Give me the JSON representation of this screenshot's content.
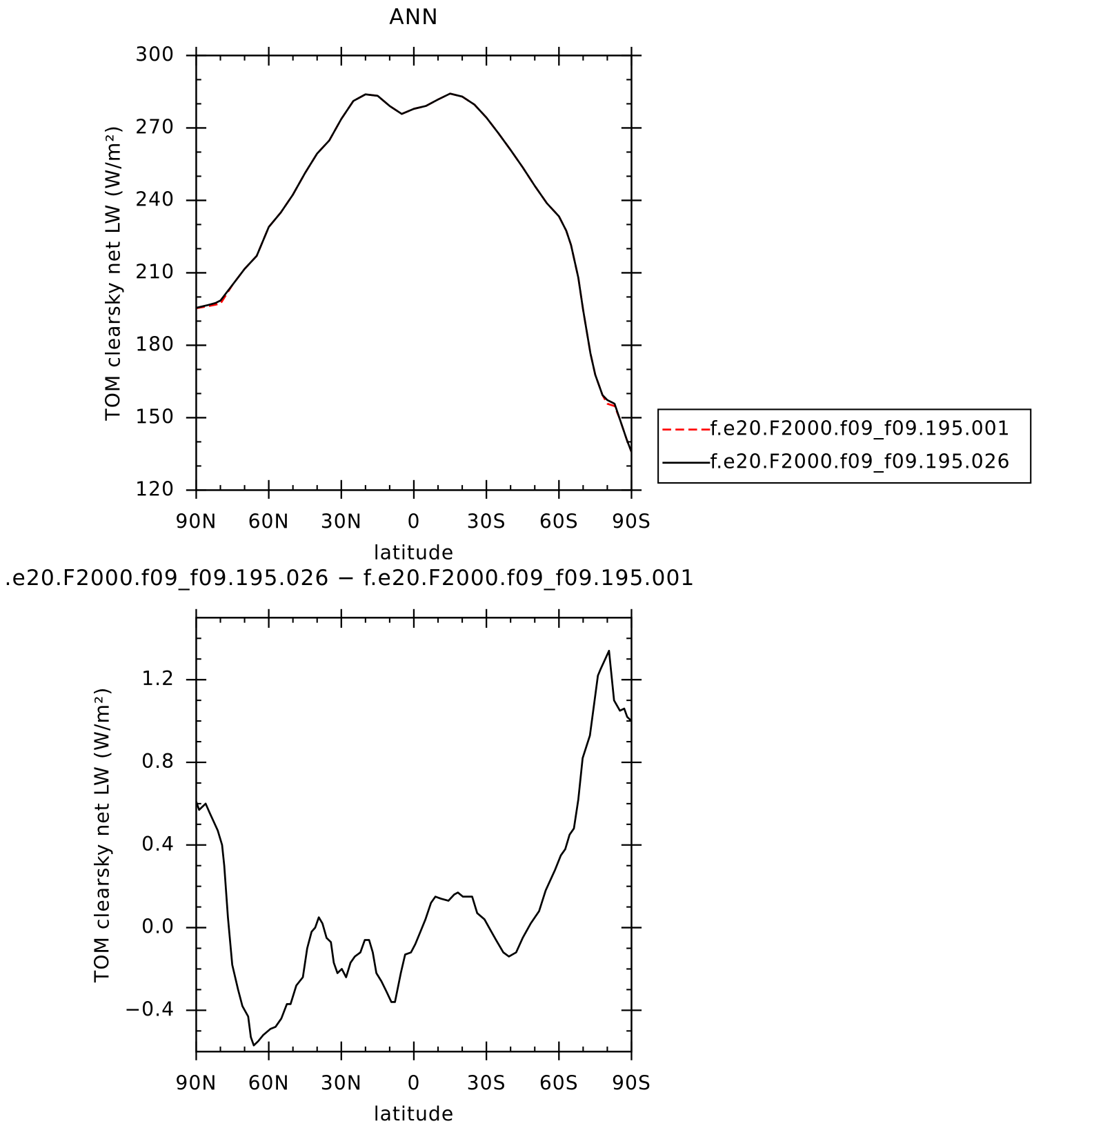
{
  "chart_data": [
    {
      "type": "line",
      "title": "ANN",
      "xlabel": "latitude",
      "ylabel": "TOM clearsky net LW (W/m²)",
      "x": [
        90,
        85,
        82,
        80,
        75,
        70,
        65,
        60,
        55,
        50,
        45,
        40,
        35,
        30,
        25,
        20,
        15,
        10,
        5,
        0,
        -5,
        -10,
        -15,
        -20,
        -25,
        -30,
        -35,
        -40,
        -45,
        -50,
        -55,
        -60,
        -63,
        -65,
        -68,
        -70,
        -73,
        -75,
        -78,
        -80,
        -83,
        -85,
        -88,
        -90
      ],
      "series": [
        {
          "name": "f.e20.F2000.f09_f09.195.001",
          "color": "#ff0000",
          "dash": true,
          "values": [
            195.3,
            196.2,
            196.8,
            197.2,
            205,
            211.6,
            217,
            229,
            235,
            242.4,
            251.3,
            259.4,
            264.8,
            273.7,
            281.2,
            283.9,
            283.3,
            279.1,
            275.8,
            277.9,
            279.1,
            281.8,
            284.2,
            283,
            279.7,
            274.3,
            267.8,
            260.9,
            253.7,
            246,
            238.8,
            233.4,
            227.5,
            221.5,
            208,
            194.6,
            176.7,
            167.8,
            159.4,
            155.8,
            154.8,
            149.9,
            141,
            135.8
          ]
        },
        {
          "name": "f.e20.F2000.f09_f09.195.026",
          "color": "#000000",
          "dash": false,
          "values": [
            195.5,
            196.7,
            197.5,
            198.5,
            205,
            211.6,
            217,
            229,
            235,
            242.4,
            251.3,
            259.4,
            264.8,
            273.7,
            281.2,
            283.9,
            283.3,
            279.1,
            275.8,
            277.9,
            279.1,
            281.8,
            284.2,
            283,
            279.7,
            274.3,
            267.8,
            260.9,
            253.7,
            246,
            238.8,
            233.4,
            227.5,
            221.5,
            208,
            194.6,
            176.7,
            167.8,
            159.4,
            157.3,
            155.8,
            149.9,
            141,
            135.8
          ]
        }
      ],
      "xlim": [
        90,
        -90
      ],
      "xticks": [
        {
          "value": 90,
          "label": "90N"
        },
        {
          "value": 60,
          "label": "60N"
        },
        {
          "value": 30,
          "label": "30N"
        },
        0,
        {
          "value": -30,
          "label": "30S"
        },
        {
          "value": -60,
          "label": "60S"
        },
        {
          "value": -90,
          "label": "90S"
        }
      ],
      "ylim": [
        120,
        300
      ],
      "yticks": [
        120,
        150,
        180,
        210,
        240,
        270,
        300
      ],
      "legend": "right"
    },
    {
      "type": "line",
      "title": ".e20.F2000.f09_f09.195.026 − f.e20.F2000.f09_f09.195.001",
      "xlabel": "latitude",
      "ylabel": "TOM clearsky net LW (W/m²)",
      "x": [
        90,
        88.8,
        86.1,
        84.6,
        81.1,
        79.3,
        78.4,
        76.9,
        75.1,
        72.7,
        70.9,
        68.5,
        67.4,
        66.2,
        64.4,
        62.3,
        59.3,
        57.2,
        54.8,
        52.5,
        51,
        48.6,
        45.9,
        44.1,
        42.3,
        40.8,
        39.3,
        37.8,
        36.1,
        34.3,
        33.1,
        31.6,
        29.8,
        28,
        26.2,
        24.4,
        22.1,
        20.3,
        18.5,
        17,
        15.5,
        13.4,
        11.3,
        9.3,
        7.8,
        5.4,
        3.6,
        1.2,
        -0.6,
        -2.7,
        -4.8,
        -7.1,
        -8.9,
        -11.3,
        -14.3,
        -16.7,
        -18.2,
        -20.3,
        -24.1,
        -26.2,
        -29.2,
        -31.6,
        -34,
        -37,
        -39.3,
        -42.3,
        -45,
        -48.3,
        -51.8,
        -54.5,
        -58.4,
        -60.8,
        -62.6,
        -64.4,
        -66.2,
        -68,
        -69.8,
        -72.8,
        -76.1,
        -77.2,
        -80.7,
        -82.8,
        -85.2,
        -87,
        -88.2,
        -90
      ],
      "series": [
        {
          "color": "#000000",
          "dash": false,
          "values": [
            0.61,
            0.57,
            0.6,
            0.56,
            0.47,
            0.4,
            0.3,
            0.05,
            -0.18,
            -0.3,
            -0.38,
            -0.43,
            -0.53,
            -0.57,
            -0.55,
            -0.52,
            -0.49,
            -0.48,
            -0.44,
            -0.37,
            -0.37,
            -0.28,
            -0.24,
            -0.1,
            -0.02,
            0,
            0.05,
            0.02,
            -0.05,
            -0.07,
            -0.17,
            -0.22,
            -0.2,
            -0.24,
            -0.17,
            -0.14,
            -0.12,
            -0.06,
            -0.06,
            -0.12,
            -0.22,
            -0.26,
            -0.31,
            -0.36,
            -0.36,
            -0.22,
            -0.13,
            -0.12,
            -0.08,
            -0.02,
            0.04,
            0.12,
            0.15,
            0.14,
            0.13,
            0.16,
            0.17,
            0.15,
            0.15,
            0.07,
            0.04,
            -0.01,
            -0.06,
            -0.12,
            -0.14,
            -0.12,
            -0.05,
            0.02,
            0.08,
            0.18,
            0.28,
            0.35,
            0.38,
            0.45,
            0.48,
            0.62,
            0.82,
            0.93,
            1.22,
            1.25,
            1.34,
            1.1,
            1.05,
            1.06,
            1.02,
            1.0
          ]
        }
      ],
      "xlim": [
        90,
        -90
      ],
      "xticks": [
        {
          "value": 90,
          "label": "90N"
        },
        {
          "value": 60,
          "label": "60N"
        },
        {
          "value": 30,
          "label": "30N"
        },
        0,
        {
          "value": -30,
          "label": "30S"
        },
        {
          "value": -60,
          "label": "60S"
        },
        {
          "value": -90,
          "label": "90S"
        }
      ],
      "ylim": [
        -0.6,
        1.5
      ],
      "yticks": [
        {
          "value": -0.4,
          "label": "−0.4"
        },
        {
          "value": 0,
          "label": "0.0"
        },
        0.4,
        0.8,
        1.2
      ]
    }
  ]
}
